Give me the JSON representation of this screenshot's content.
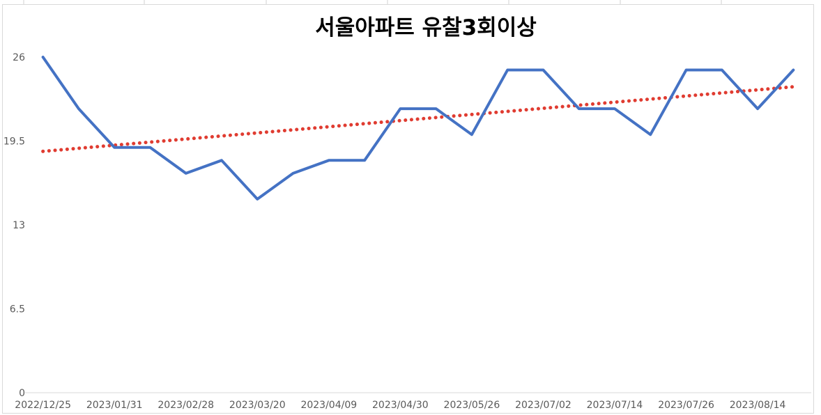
{
  "chart_data": {
    "type": "line",
    "title": "서울아파트 유찰3회이상",
    "xlabel": "",
    "ylabel": "",
    "ylim": [
      0,
      26
    ],
    "yticks": [
      "0",
      "6.5",
      "13",
      "19.5",
      "26"
    ],
    "categories": [
      "2022/12/25",
      "",
      "2023/01/31",
      "",
      "2023/02/28",
      "",
      "2023/03/20",
      "",
      "2023/04/09",
      "",
      "2023/04/30",
      "",
      "2023/05/26",
      "",
      "2023/07/02",
      "",
      "2023/07/14",
      "",
      "2023/07/26",
      "",
      "2023/08/14",
      ""
    ],
    "x_tick_labels": [
      "2022/12/25",
      "2023/01/31",
      "2023/02/28",
      "2023/03/20",
      "2023/04/09",
      "2023/04/30",
      "2023/05/26",
      "2023/07/02",
      "2023/07/14",
      "2023/07/26",
      "2023/08/14"
    ],
    "series": [
      {
        "values": [
          26,
          22,
          19,
          19,
          17,
          18,
          15,
          17,
          18,
          18,
          22,
          22,
          20,
          25,
          25,
          22,
          22,
          20,
          25,
          25,
          22,
          25
        ],
        "color": "#4472c4"
      }
    ],
    "trendline": {
      "kind": "linear",
      "style": "dotted",
      "color": "#e03c31",
      "start": 18.7,
      "end": 23.7
    },
    "grid": false,
    "legend": "none"
  }
}
